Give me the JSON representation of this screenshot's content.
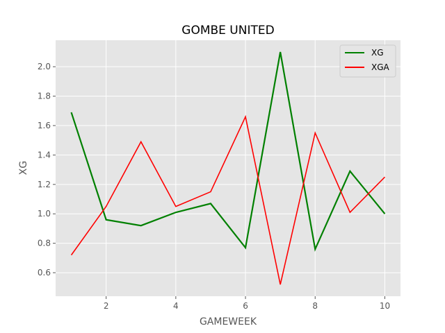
{
  "chart_data": {
    "type": "line",
    "title": "GOMBE UNITED",
    "xlabel": "GAMEWEEK",
    "ylabel": "XG",
    "x": [
      1,
      2,
      3,
      4,
      5,
      6,
      7,
      8,
      9,
      10
    ],
    "xlim": [
      0.55,
      10.45
    ],
    "ylim": [
      0.44,
      2.18
    ],
    "x_ticks": [
      2,
      4,
      6,
      8,
      10
    ],
    "y_ticks": [
      0.6,
      0.8,
      1.0,
      1.2,
      1.4,
      1.6,
      1.8,
      2.0
    ],
    "grid": true,
    "legend_position": "upper right",
    "series": [
      {
        "name": "XG",
        "color": "#008000",
        "values": [
          1.69,
          0.96,
          0.92,
          1.01,
          1.07,
          0.77,
          2.1,
          0.76,
          1.29,
          1.0
        ]
      },
      {
        "name": "XGA",
        "color": "#ff0000",
        "values": [
          0.72,
          1.05,
          1.49,
          1.05,
          1.15,
          1.66,
          0.52,
          1.55,
          1.01,
          1.25
        ]
      }
    ]
  }
}
